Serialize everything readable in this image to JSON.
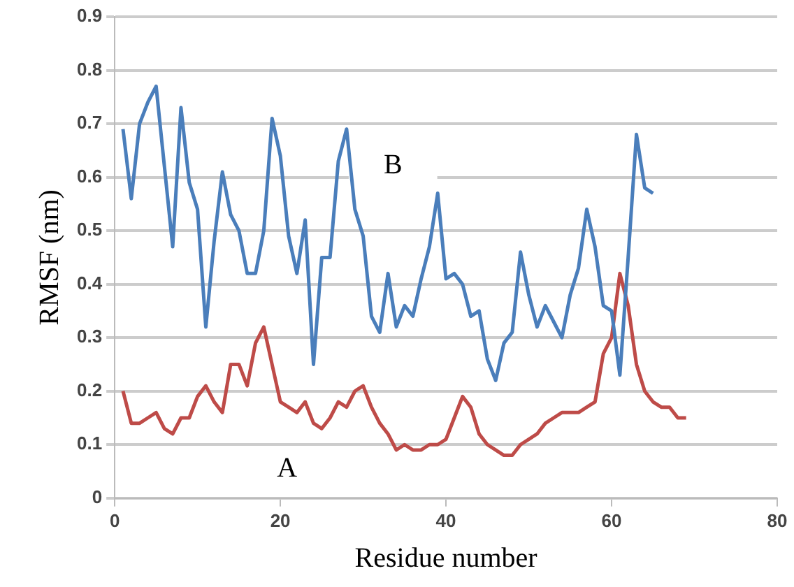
{
  "chart_data": {
    "type": "line",
    "xlabel": "Residue number",
    "ylabel": "RMSF (nm)",
    "xlim": [
      0,
      80
    ],
    "xticks": [
      0,
      20,
      40,
      60,
      80
    ],
    "ylim": [
      0,
      0.9
    ],
    "yticks": [
      0,
      0.1,
      0.2,
      0.3,
      0.4,
      0.5,
      0.6,
      0.7,
      0.8,
      0.9
    ],
    "grid": "y",
    "legend": false,
    "marker": "none",
    "line_style": "solid",
    "annotations": [
      "B",
      "A"
    ],
    "series": [
      {
        "color": "#4a7ebb",
        "x": [
          1,
          2,
          3,
          4,
          5,
          6,
          7,
          8,
          9,
          10,
          11,
          12,
          13,
          14,
          15,
          16,
          17,
          18,
          19,
          20,
          21,
          22,
          23,
          24,
          25,
          26,
          27,
          28,
          29,
          30,
          31,
          32,
          33,
          34,
          35,
          36,
          37,
          38,
          39,
          40,
          41,
          42,
          43,
          44,
          45,
          46,
          47,
          48,
          49,
          50,
          51,
          52,
          53,
          54,
          55,
          56,
          57,
          58,
          59,
          60,
          61,
          62,
          63,
          64,
          65
        ],
        "values": [
          0.69,
          0.56,
          0.7,
          0.74,
          0.77,
          0.62,
          0.47,
          0.73,
          0.59,
          0.54,
          0.32,
          0.48,
          0.61,
          0.53,
          0.5,
          0.42,
          0.42,
          0.5,
          0.71,
          0.64,
          0.49,
          0.42,
          0.52,
          0.25,
          0.45,
          0.45,
          0.63,
          0.69,
          0.54,
          0.49,
          0.34,
          0.31,
          0.42,
          0.32,
          0.36,
          0.34,
          0.41,
          0.47,
          0.57,
          0.41,
          0.42,
          0.4,
          0.34,
          0.35,
          0.26,
          0.22,
          0.29,
          0.31,
          0.46,
          0.38,
          0.32,
          0.36,
          0.33,
          0.3,
          0.38,
          0.43,
          0.54,
          0.47,
          0.36,
          0.35,
          0.23,
          0.45,
          0.68,
          0.58,
          0.57
        ]
      },
      {
        "color": "#be4b48",
        "x": [
          1,
          2,
          3,
          4,
          5,
          6,
          7,
          8,
          9,
          10,
          11,
          12,
          13,
          14,
          15,
          16,
          17,
          18,
          19,
          20,
          21,
          22,
          23,
          24,
          25,
          26,
          27,
          28,
          29,
          30,
          31,
          32,
          33,
          34,
          35,
          36,
          37,
          38,
          39,
          40,
          41,
          42,
          43,
          44,
          45,
          46,
          47,
          48,
          49,
          50,
          51,
          52,
          53,
          54,
          55,
          56,
          57,
          58,
          59,
          60,
          61,
          62,
          63,
          64,
          65,
          66,
          67,
          68,
          69
        ],
        "values": [
          0.2,
          0.14,
          0.14,
          0.15,
          0.16,
          0.13,
          0.12,
          0.15,
          0.15,
          0.19,
          0.21,
          0.18,
          0.16,
          0.25,
          0.25,
          0.21,
          0.29,
          0.32,
          0.25,
          0.18,
          0.17,
          0.16,
          0.18,
          0.14,
          0.13,
          0.15,
          0.18,
          0.17,
          0.2,
          0.21,
          0.17,
          0.14,
          0.12,
          0.09,
          0.1,
          0.09,
          0.09,
          0.1,
          0.1,
          0.11,
          0.15,
          0.19,
          0.17,
          0.12,
          0.1,
          0.09,
          0.08,
          0.08,
          0.1,
          0.11,
          0.12,
          0.14,
          0.15,
          0.16,
          0.16,
          0.16,
          0.17,
          0.18,
          0.27,
          0.3,
          0.42,
          0.36,
          0.25,
          0.2,
          0.18,
          0.17,
          0.17,
          0.15,
          0.15
        ]
      }
    ]
  }
}
